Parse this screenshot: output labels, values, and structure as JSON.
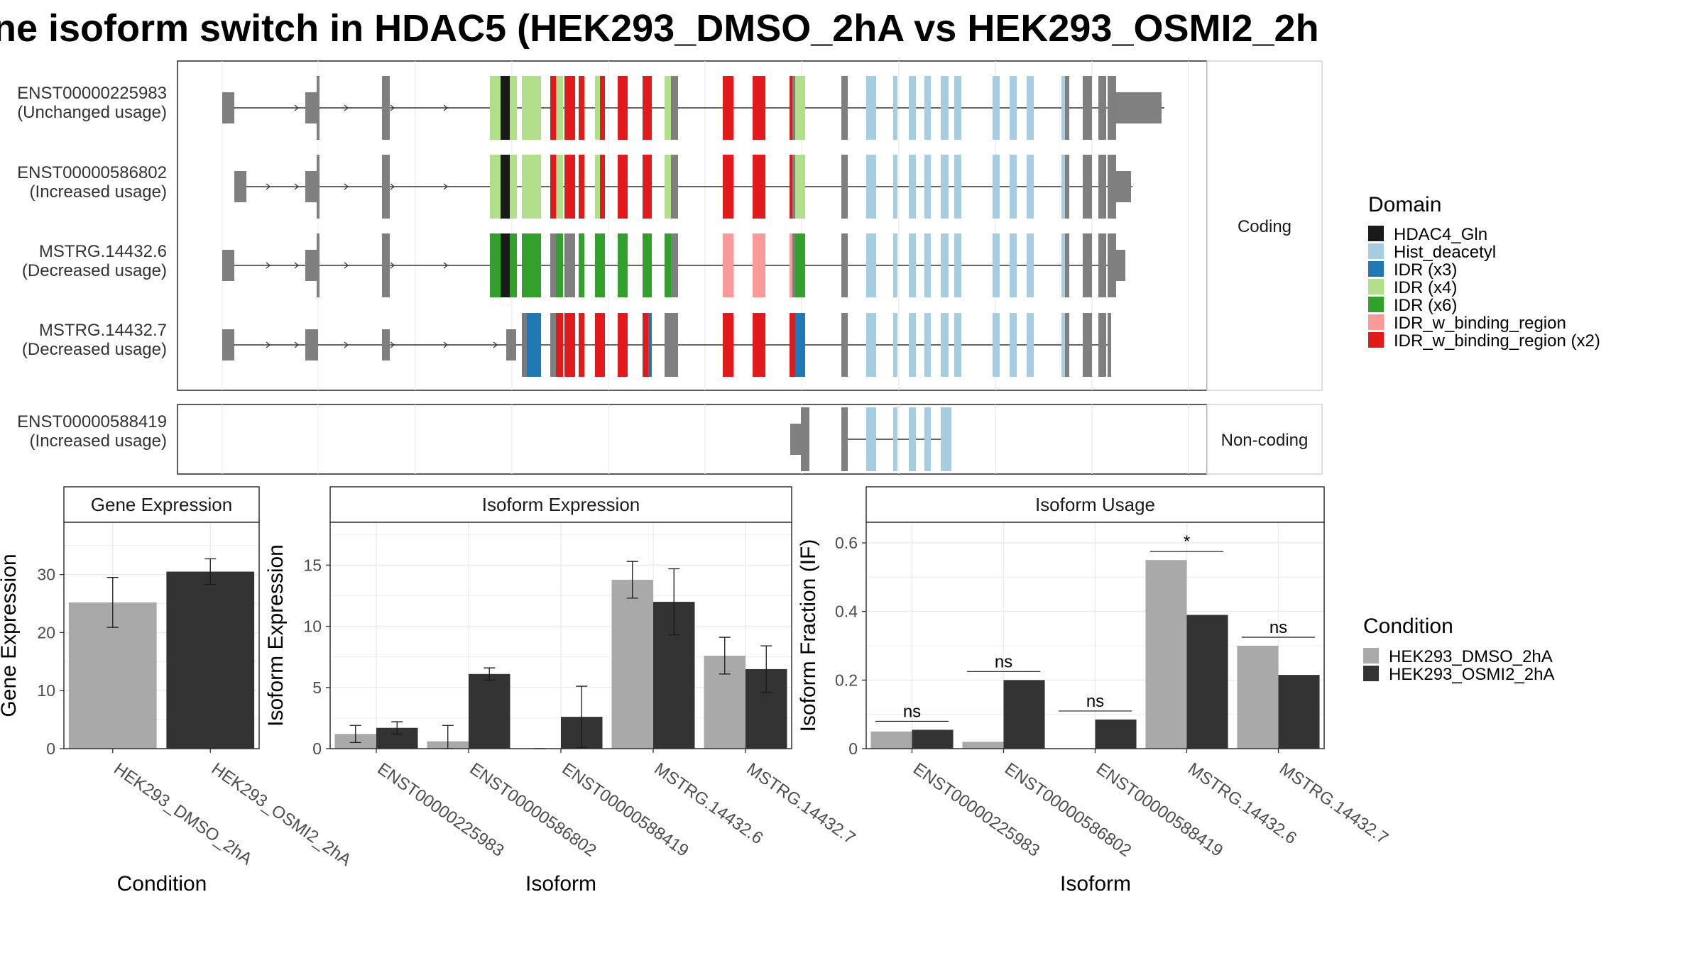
{
  "title": "ne isoform switch in HDAC5 (HEK293_DMSO_2hA vs HEK293_OSMI2_2h",
  "structure": {
    "facet_coding": "Coding",
    "facet_noncoding": "Non-coding",
    "transcripts": [
      {
        "id": "ENST00000225983",
        "usage": "(Unchanged usage)"
      },
      {
        "id": "ENST00000586802",
        "usage": "(Increased usage)"
      },
      {
        "id": "MSTRG.14432.6",
        "usage": "(Decreased usage)"
      },
      {
        "id": "MSTRG.14432.7",
        "usage": "(Decreased usage)"
      },
      {
        "id": "ENST00000588419",
        "usage": "(Increased usage)"
      }
    ]
  },
  "domain_legend": {
    "title": "Domain",
    "items": [
      {
        "label": "HDAC4_Gln",
        "color": "#1a1a1a"
      },
      {
        "label": "Hist_deacetyl",
        "color": "#a6cee3"
      },
      {
        "label": "IDR (x3)",
        "color": "#1f78b4"
      },
      {
        "label": "IDR (x4)",
        "color": "#b2df8a"
      },
      {
        "label": "IDR (x6)",
        "color": "#33a02c"
      },
      {
        "label": "IDR_w_binding_region",
        "color": "#fb9a99"
      },
      {
        "label": "IDR_w_binding_region (x2)",
        "color": "#e31a1c"
      }
    ]
  },
  "condition_legend": {
    "title": "Condition",
    "items": [
      {
        "label": "HEK293_DMSO_2hA",
        "color": "#a9a9a9"
      },
      {
        "label": "HEK293_OSMI2_2hA",
        "color": "#333333"
      }
    ]
  },
  "chart_data": [
    {
      "type": "bar",
      "title": "Gene Expression",
      "xlabel": "Condition",
      "ylabel": "Gene Expression",
      "ylim": [
        0,
        39
      ],
      "yticks": [
        0,
        10,
        20,
        30
      ],
      "categories": [
        "HEK293_DMSO_2hA",
        "HEK293_OSMI2_2hA"
      ],
      "values": [
        25.2,
        30.5
      ],
      "errors": [
        4.3,
        2.2
      ]
    },
    {
      "type": "bar",
      "title": "Isoform Expression",
      "xlabel": "Isoform",
      "ylabel": "Isoform Expression",
      "ylim": [
        0,
        18.5
      ],
      "yticks": [
        0,
        5,
        10,
        15
      ],
      "categories": [
        "ENST00000225983",
        "ENST00000586802",
        "ENST00000588419",
        "MSTRG.14432.6",
        "MSTRG.14432.7"
      ],
      "series": [
        {
          "name": "HEK293_DMSO_2hA",
          "values": [
            1.2,
            0.6,
            0.0,
            13.8,
            7.6
          ],
          "errors": [
            0.7,
            1.3,
            0.0,
            1.5,
            1.5
          ]
        },
        {
          "name": "HEK293_OSMI2_2hA",
          "values": [
            1.7,
            6.1,
            2.6,
            12.0,
            6.5
          ],
          "errors": [
            0.5,
            0.5,
            2.5,
            2.7,
            1.9
          ]
        }
      ]
    },
    {
      "type": "bar",
      "title": "Isoform Usage",
      "xlabel": "Isoform",
      "ylabel": "Isoform Fraction (IF)",
      "ylim": [
        0,
        0.66
      ],
      "yticks": [
        0.0,
        0.2,
        0.4,
        0.6
      ],
      "categories": [
        "ENST00000225983",
        "ENST00000586802",
        "ENST00000588419",
        "MSTRG.14432.6",
        "MSTRG.14432.7"
      ],
      "series": [
        {
          "name": "HEK293_DMSO_2hA",
          "values": [
            0.05,
            0.02,
            0.0,
            0.55,
            0.3
          ]
        },
        {
          "name": "HEK293_OSMI2_2hA",
          "values": [
            0.055,
            0.2,
            0.085,
            0.39,
            0.215
          ]
        }
      ],
      "annotations": [
        "ns",
        "ns",
        "ns",
        "*",
        "ns"
      ]
    }
  ]
}
